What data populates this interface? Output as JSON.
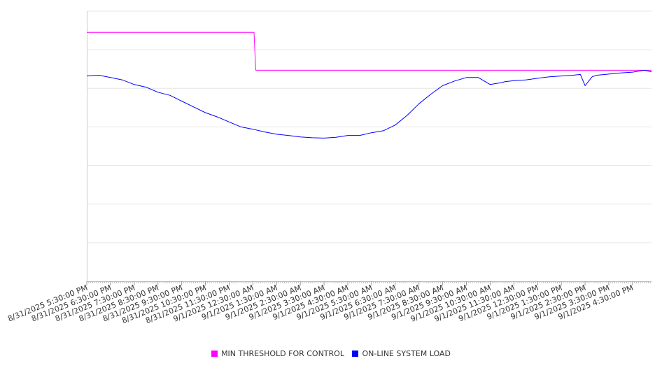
{
  "chart_data": {
    "type": "line",
    "title": "",
    "xlabel": "",
    "ylabel": "",
    "y_tick_labels_shown": false,
    "grid": "horizontal",
    "legend_position": "bottom-center",
    "x_tick_labels": [
      "8/31/2025 5:30:00 PM",
      "8/31/2025 6:30:00 PM",
      "8/31/2025 7:30:00 PM",
      "8/31/2025 8:30:00 PM",
      "8/31/2025 9:30:00 PM",
      "8/31/2025 10:30:00 PM",
      "8/31/2025 11:30:00 PM",
      "9/1/2025 12:30:00 AM",
      "9/1/2025 1:30:00 AM",
      "9/1/2025 2:30:00 AM",
      "9/1/2025 3:30:00 AM",
      "9/1/2025 4:30:00 AM",
      "9/1/2025 5:30:00 AM",
      "9/1/2025 6:30:00 AM",
      "9/1/2025 7:30:00 AM",
      "9/1/2025 8:30:00 AM",
      "9/1/2025 9:30:00 AM",
      "9/1/2025 10:30:00 AM",
      "9/1/2025 11:30:00 AM",
      "9/1/2025 12:30:00 PM",
      "9/1/2025 1:30:00 PM",
      "9/1/2025 2:30:00 PM",
      "9/1/2025 3:30:00 PM",
      "9/1/2025 4:30:00 PM"
    ],
    "x_range_hours": [
      0,
      23.8
    ],
    "y_range_relative": [
      0,
      7
    ],
    "series": [
      {
        "name": "MIN THRESHOLD FOR CONTROL",
        "color": "#ff00ff",
        "x_hours": [
          0,
          7.05,
          7.12,
          23.8
        ],
        "y": [
          6.45,
          6.45,
          5.47,
          5.47
        ]
      },
      {
        "name": "ON-LINE SYSTEM LOAD",
        "color": "#0000ff",
        "x_hours": [
          0,
          0.5,
          1.0,
          1.5,
          2.0,
          2.5,
          3.0,
          3.5,
          4.0,
          4.5,
          5.0,
          5.5,
          6.0,
          6.5,
          7.0,
          7.5,
          8.0,
          8.5,
          9.0,
          9.5,
          10.0,
          10.5,
          11.0,
          11.5,
          12.0,
          12.5,
          13.0,
          13.5,
          14.0,
          14.5,
          15.0,
          15.5,
          16.0,
          16.5,
          17.0,
          17.5,
          17.6,
          18.0,
          18.5,
          19.0,
          19.5,
          20.0,
          20.5,
          20.8,
          21.0,
          21.3,
          21.5,
          22.0,
          22.5,
          23.0,
          23.5,
          23.8
        ],
        "y": [
          5.32,
          5.34,
          5.28,
          5.22,
          5.1,
          5.03,
          4.9,
          4.82,
          4.67,
          4.52,
          4.37,
          4.26,
          4.13,
          4.0,
          3.94,
          3.87,
          3.81,
          3.78,
          3.74,
          3.72,
          3.71,
          3.73,
          3.78,
          3.78,
          3.85,
          3.9,
          4.05,
          4.3,
          4.6,
          4.85,
          5.07,
          5.19,
          5.28,
          5.28,
          5.1,
          5.15,
          5.17,
          5.2,
          5.22,
          5.26,
          5.3,
          5.32,
          5.34,
          5.36,
          5.07,
          5.3,
          5.34,
          5.37,
          5.4,
          5.42,
          5.47,
          5.43
        ]
      }
    ]
  }
}
